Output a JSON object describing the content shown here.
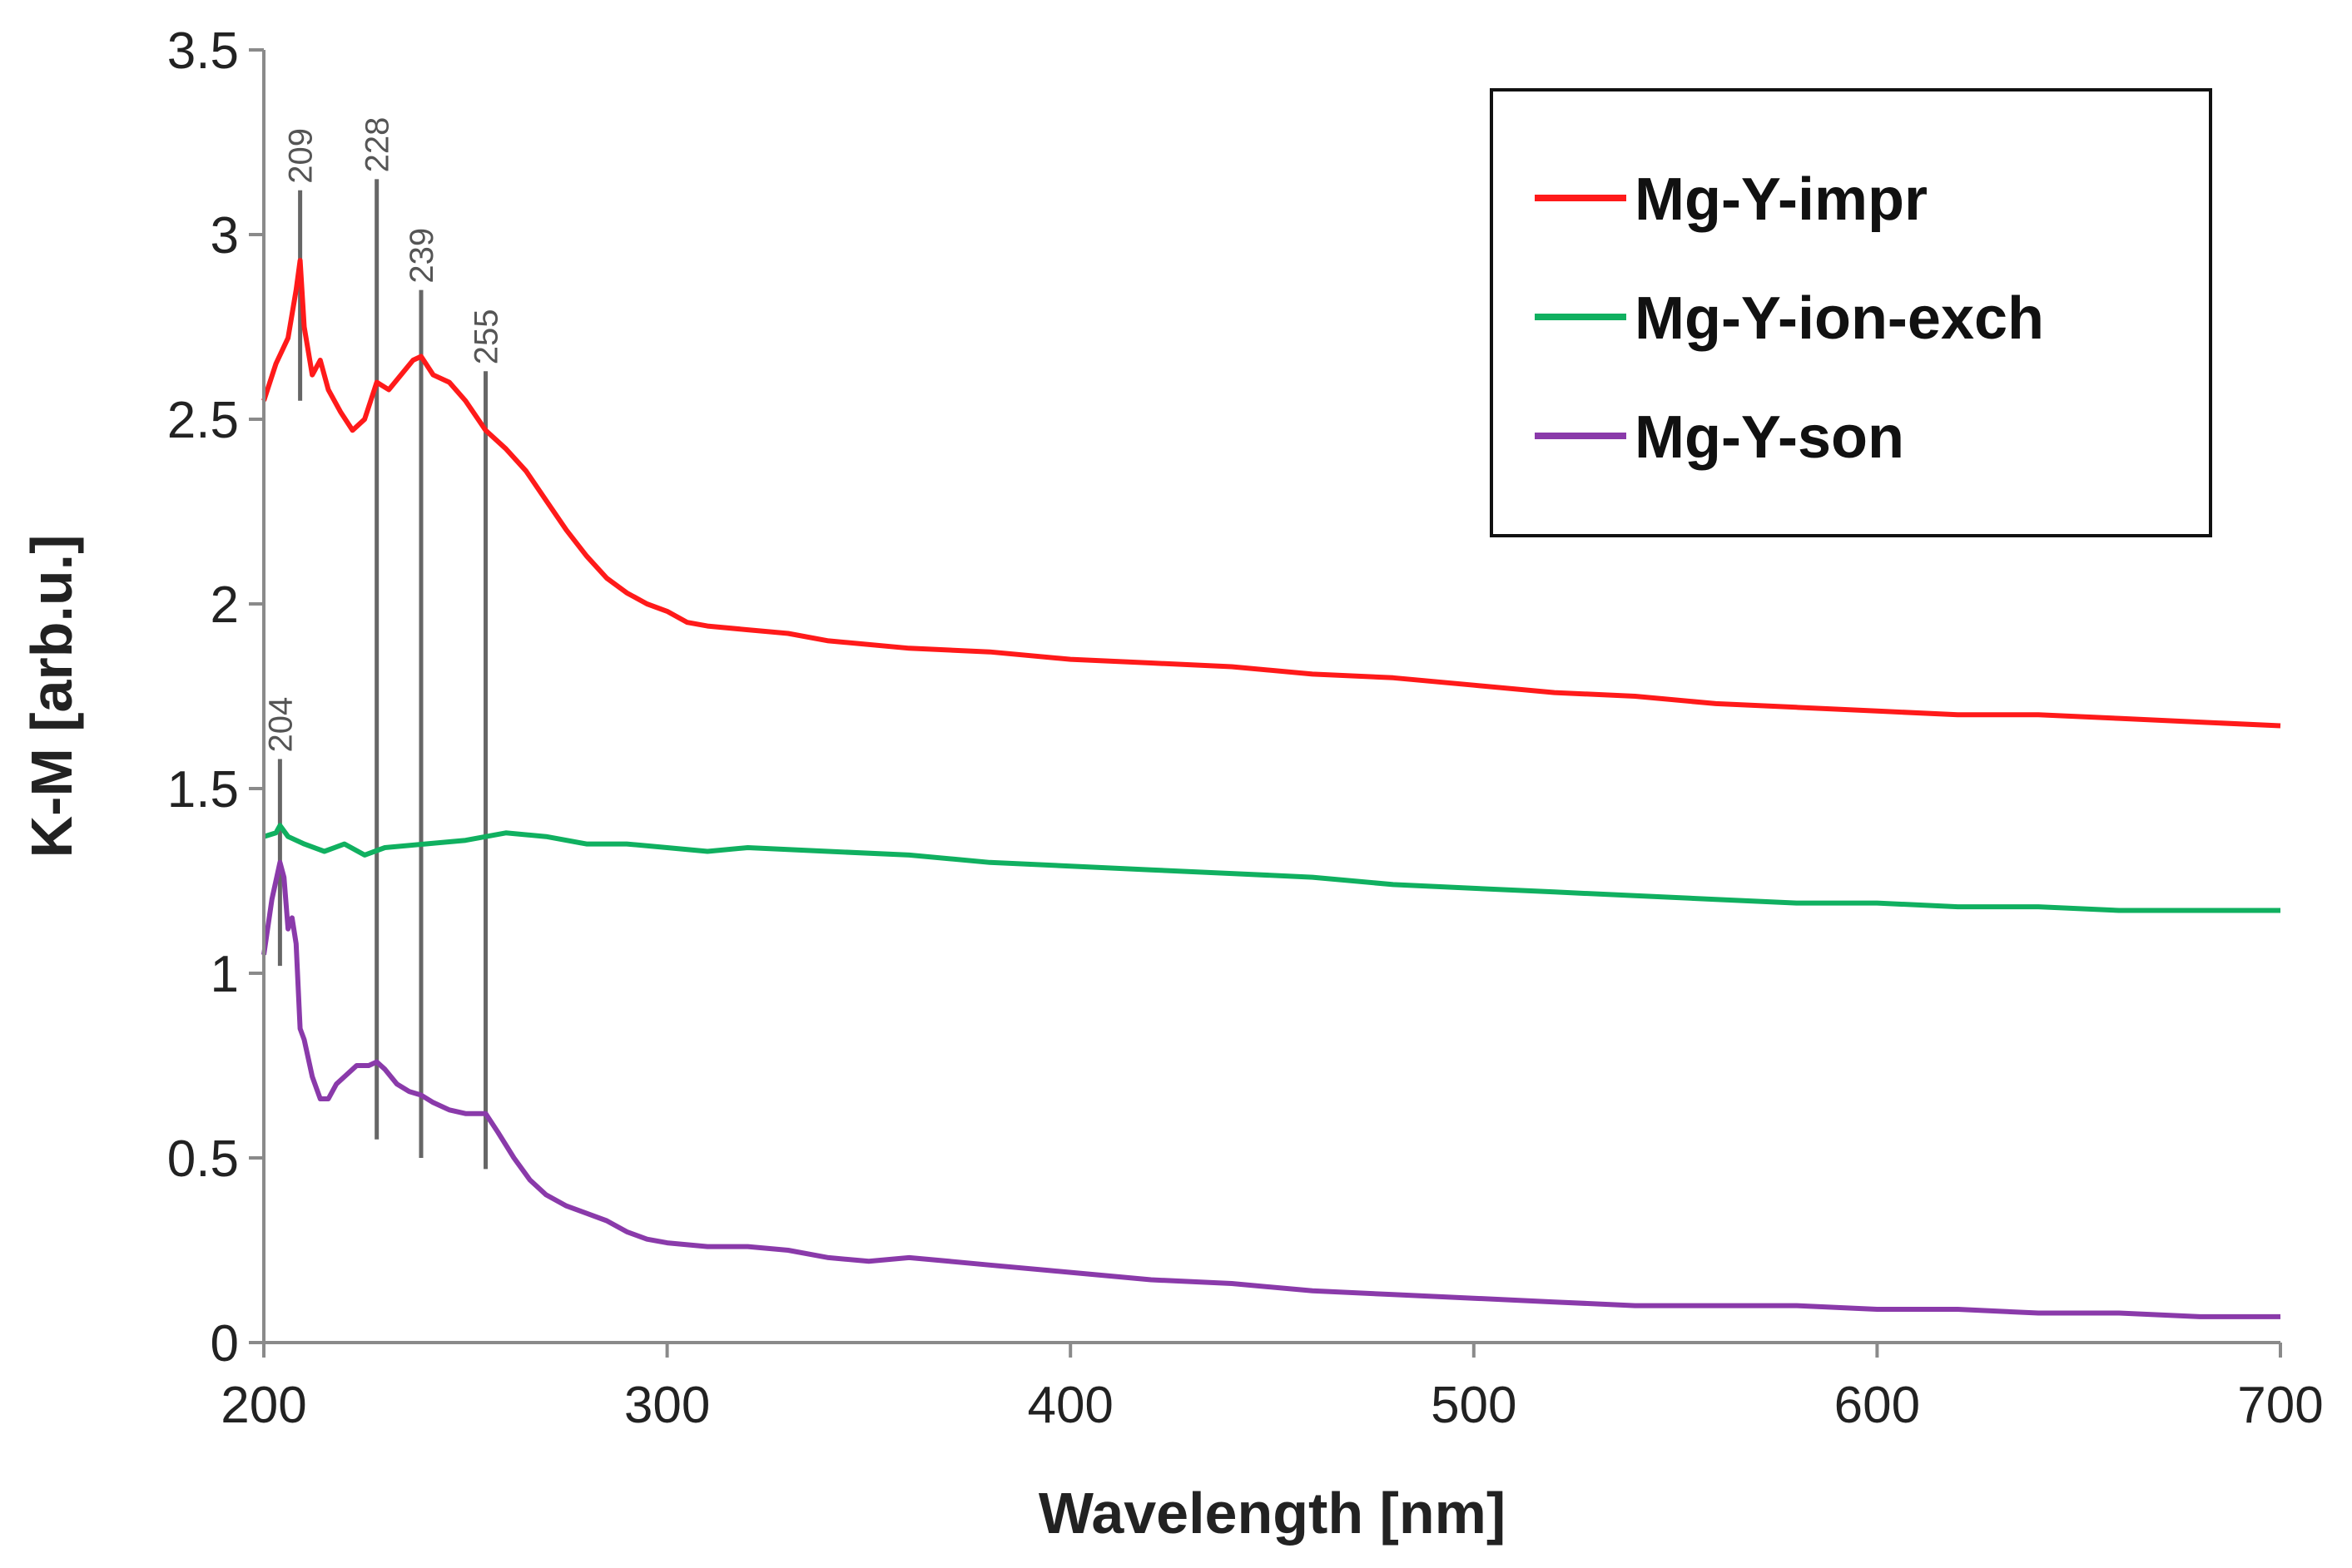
{
  "chart_data": {
    "type": "line",
    "title": "",
    "xlabel": "Wavelength [nm]",
    "ylabel": "K-M [arb.u.]",
    "xlim": [
      200,
      700
    ],
    "ylim": [
      0,
      3.5
    ],
    "xticks": [
      200,
      300,
      400,
      500,
      600,
      700
    ],
    "xtick_labels": [
      "200",
      "300",
      "400",
      "500",
      "600",
      "700"
    ],
    "yticks": [
      0,
      0.5,
      1,
      1.5,
      2,
      2.5,
      3,
      3.5
    ],
    "ytick_labels": [
      "0",
      "0.5",
      "1",
      "1.5",
      "2",
      "2.5",
      "3",
      "3.5"
    ],
    "grid": false,
    "legend_position": "top-right",
    "series": [
      {
        "name": "Mg-Y-impr",
        "color": "#ff1a1a",
        "points": [
          [
            200,
            2.55
          ],
          [
            203,
            2.65
          ],
          [
            206,
            2.72
          ],
          [
            208,
            2.85
          ],
          [
            209,
            2.93
          ],
          [
            210,
            2.75
          ],
          [
            212,
            2.62
          ],
          [
            214,
            2.66
          ],
          [
            216,
            2.58
          ],
          [
            219,
            2.52
          ],
          [
            222,
            2.47
          ],
          [
            225,
            2.5
          ],
          [
            228,
            2.6
          ],
          [
            231,
            2.58
          ],
          [
            234,
            2.62
          ],
          [
            237,
            2.66
          ],
          [
            239,
            2.67
          ],
          [
            242,
            2.62
          ],
          [
            246,
            2.6
          ],
          [
            250,
            2.55
          ],
          [
            255,
            2.47
          ],
          [
            260,
            2.42
          ],
          [
            265,
            2.36
          ],
          [
            270,
            2.28
          ],
          [
            275,
            2.2
          ],
          [
            280,
            2.13
          ],
          [
            285,
            2.07
          ],
          [
            290,
            2.03
          ],
          [
            295,
            2.0
          ],
          [
            300,
            1.98
          ],
          [
            305,
            1.95
          ],
          [
            310,
            1.94
          ],
          [
            320,
            1.93
          ],
          [
            330,
            1.92
          ],
          [
            340,
            1.9
          ],
          [
            360,
            1.88
          ],
          [
            380,
            1.87
          ],
          [
            400,
            1.85
          ],
          [
            420,
            1.84
          ],
          [
            440,
            1.83
          ],
          [
            460,
            1.81
          ],
          [
            480,
            1.8
          ],
          [
            500,
            1.78
          ],
          [
            520,
            1.76
          ],
          [
            540,
            1.75
          ],
          [
            560,
            1.73
          ],
          [
            580,
            1.72
          ],
          [
            600,
            1.71
          ],
          [
            620,
            1.7
          ],
          [
            640,
            1.7
          ],
          [
            660,
            1.69
          ],
          [
            680,
            1.68
          ],
          [
            700,
            1.67
          ]
        ]
      },
      {
        "name": "Mg-Y-ion-exch",
        "color": "#10b060",
        "points": [
          [
            200,
            1.37
          ],
          [
            203,
            1.38
          ],
          [
            204,
            1.4
          ],
          [
            206,
            1.37
          ],
          [
            210,
            1.35
          ],
          [
            215,
            1.33
          ],
          [
            220,
            1.35
          ],
          [
            225,
            1.32
          ],
          [
            230,
            1.34
          ],
          [
            240,
            1.35
          ],
          [
            250,
            1.36
          ],
          [
            260,
            1.38
          ],
          [
            270,
            1.37
          ],
          [
            280,
            1.35
          ],
          [
            290,
            1.35
          ],
          [
            300,
            1.34
          ],
          [
            310,
            1.33
          ],
          [
            320,
            1.34
          ],
          [
            340,
            1.33
          ],
          [
            360,
            1.32
          ],
          [
            380,
            1.3
          ],
          [
            400,
            1.29
          ],
          [
            420,
            1.28
          ],
          [
            440,
            1.27
          ],
          [
            460,
            1.26
          ],
          [
            480,
            1.24
          ],
          [
            500,
            1.23
          ],
          [
            520,
            1.22
          ],
          [
            540,
            1.21
          ],
          [
            560,
            1.2
          ],
          [
            580,
            1.19
          ],
          [
            600,
            1.19
          ],
          [
            620,
            1.18
          ],
          [
            640,
            1.18
          ],
          [
            660,
            1.17
          ],
          [
            680,
            1.17
          ],
          [
            700,
            1.17
          ]
        ]
      },
      {
        "name": "Mg-Y-son",
        "color": "#8a3aaa",
        "points": [
          [
            200,
            1.05
          ],
          [
            202,
            1.2
          ],
          [
            204,
            1.3
          ],
          [
            205,
            1.26
          ],
          [
            206,
            1.12
          ],
          [
            207,
            1.15
          ],
          [
            208,
            1.08
          ],
          [
            209,
            0.85
          ],
          [
            210,
            0.82
          ],
          [
            212,
            0.72
          ],
          [
            214,
            0.66
          ],
          [
            216,
            0.66
          ],
          [
            218,
            0.7
          ],
          [
            220,
            0.72
          ],
          [
            223,
            0.75
          ],
          [
            226,
            0.75
          ],
          [
            228,
            0.76
          ],
          [
            230,
            0.74
          ],
          [
            233,
            0.7
          ],
          [
            236,
            0.68
          ],
          [
            239,
            0.67
          ],
          [
            242,
            0.65
          ],
          [
            246,
            0.63
          ],
          [
            250,
            0.62
          ],
          [
            255,
            0.62
          ],
          [
            258,
            0.57
          ],
          [
            262,
            0.5
          ],
          [
            266,
            0.44
          ],
          [
            270,
            0.4
          ],
          [
            275,
            0.37
          ],
          [
            280,
            0.35
          ],
          [
            285,
            0.33
          ],
          [
            290,
            0.3
          ],
          [
            295,
            0.28
          ],
          [
            300,
            0.27
          ],
          [
            310,
            0.26
          ],
          [
            320,
            0.26
          ],
          [
            330,
            0.25
          ],
          [
            340,
            0.23
          ],
          [
            350,
            0.22
          ],
          [
            360,
            0.23
          ],
          [
            370,
            0.22
          ],
          [
            380,
            0.21
          ],
          [
            400,
            0.19
          ],
          [
            420,
            0.17
          ],
          [
            440,
            0.16
          ],
          [
            460,
            0.14
          ],
          [
            480,
            0.13
          ],
          [
            500,
            0.12
          ],
          [
            520,
            0.11
          ],
          [
            540,
            0.1
          ],
          [
            560,
            0.1
          ],
          [
            580,
            0.1
          ],
          [
            600,
            0.09
          ],
          [
            620,
            0.09
          ],
          [
            640,
            0.08
          ],
          [
            660,
            0.08
          ],
          [
            680,
            0.07
          ],
          [
            700,
            0.07
          ]
        ]
      }
    ],
    "annotations": [
      {
        "label": "209",
        "x": 209,
        "y_from": 2.55,
        "y_to": 3.12
      },
      {
        "label": "228",
        "x": 228,
        "y_from": 0.55,
        "y_to": 3.15
      },
      {
        "label": "239",
        "x": 239,
        "y_from": 0.5,
        "y_to": 2.85
      },
      {
        "label": "255",
        "x": 255,
        "y_from": 0.47,
        "y_to": 2.63
      },
      {
        "label": "204",
        "x": 204,
        "y_from": 1.02,
        "y_to": 1.58
      }
    ]
  }
}
